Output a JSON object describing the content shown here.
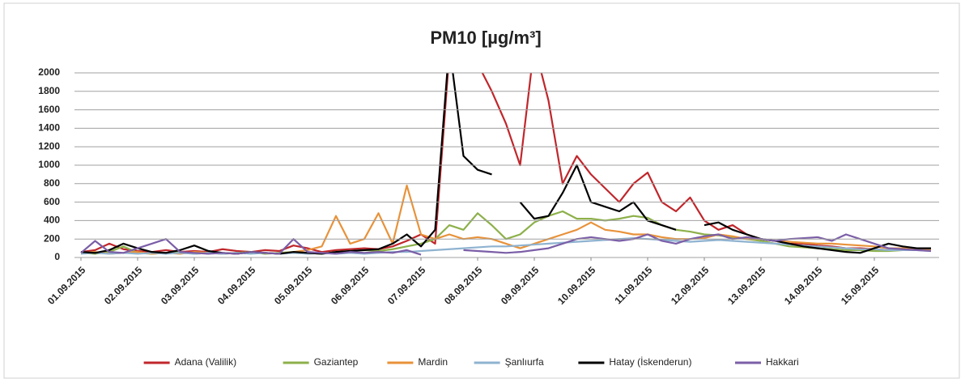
{
  "chart_data": {
    "type": "line",
    "title": "PM10  [µg/m³]",
    "categories": [
      "01.09.2015",
      null,
      null,
      null,
      "02.09.2015",
      null,
      null,
      null,
      "03.09.2015",
      null,
      null,
      null,
      "04.09.2015",
      null,
      null,
      null,
      "05.09.2015",
      null,
      null,
      null,
      "06.09.2015",
      null,
      null,
      null,
      "07.09.2015",
      null,
      null,
      null,
      "08.09.2015",
      null,
      null,
      null,
      "09.09.2015",
      null,
      null,
      null,
      "10.09.2015",
      null,
      null,
      null,
      "11.09.2015",
      null,
      null,
      null,
      "12.09.2015",
      null,
      null,
      null,
      "13.09.2015",
      null,
      null,
      null,
      "14.09.2015",
      null,
      null,
      null,
      "15.09.2015",
      null,
      null,
      null,
      null
    ],
    "series": [
      {
        "name": "Adana (Valilik)",
        "color": "#c0262b",
        "values": [
          60,
          80,
          150,
          90,
          70,
          60,
          80,
          60,
          70,
          60,
          90,
          70,
          60,
          80,
          70,
          130,
          100,
          60,
          80,
          90,
          100,
          90,
          120,
          180,
          250,
          150,
          2200,
          2400,
          2100,
          1800,
          1450,
          1000,
          2300,
          1700,
          800,
          1100,
          900,
          750,
          600,
          800,
          920,
          600,
          500,
          650,
          400,
          300,
          350,
          250,
          200,
          180,
          150,
          150,
          130,
          120,
          100,
          100,
          90,
          80,
          80,
          90,
          80
        ]
      },
      {
        "name": "Gaziantep",
        "color": "#8db04a",
        "values": [
          50,
          40,
          60,
          120,
          50,
          40,
          50,
          60,
          40,
          50,
          40,
          50,
          60,
          40,
          50,
          60,
          50,
          40,
          60,
          70,
          80,
          70,
          90,
          120,
          150,
          200,
          350,
          300,
          480,
          350,
          200,
          250,
          380,
          450,
          500,
          420,
          420,
          400,
          420,
          450,
          430,
          350,
          300,
          280,
          250,
          240,
          220,
          200,
          180,
          150,
          120,
          110,
          100,
          90,
          80,
          80,
          70,
          70,
          80,
          90,
          80
        ]
      },
      {
        "name": "Mardin",
        "color": "#e8923a",
        "values": [
          50,
          60,
          40,
          50,
          60,
          40,
          50,
          40,
          60,
          50,
          50,
          40,
          60,
          50,
          40,
          60,
          80,
          120,
          450,
          150,
          200,
          480,
          150,
          780,
          250,
          200,
          250,
          200,
          220,
          200,
          150,
          100,
          150,
          200,
          250,
          300,
          380,
          300,
          280,
          250,
          250,
          220,
          200,
          200,
          210,
          250,
          230,
          200,
          200,
          180,
          170,
          160,
          150,
          150,
          140,
          130,
          120,
          100,
          100,
          90,
          80
        ]
      },
      {
        "name": "Şanlıurfa",
        "color": "#8fb3d0",
        "values": [
          40,
          50,
          40,
          50,
          40,
          50,
          40,
          50,
          40,
          50,
          40,
          50,
          40,
          50,
          40,
          50,
          40,
          50,
          40,
          50,
          40,
          50,
          60,
          60,
          70,
          80,
          90,
          100,
          110,
          120,
          120,
          130,
          140,
          150,
          160,
          170,
          180,
          190,
          200,
          210,
          200,
          190,
          180,
          170,
          180,
          190,
          180,
          170,
          160,
          150,
          140,
          130,
          120,
          110,
          100,
          90,
          90,
          80,
          80,
          80,
          70
        ]
      },
      {
        "name": "Hatay (İskenderun)",
        "color": "#000000",
        "values": [
          60,
          50,
          80,
          150,
          100,
          60,
          50,
          80,
          130,
          70,
          50,
          40,
          60,
          50,
          40,
          60,
          50,
          40,
          60,
          70,
          80,
          90,
          150,
          250,
          120,
          300,
          2300,
          1100,
          950,
          900,
          null,
          600,
          420,
          450,
          700,
          1000,
          600,
          550,
          500,
          600,
          400,
          350,
          300,
          null,
          350,
          380,
          300,
          250,
          200,
          180,
          150,
          120,
          100,
          80,
          60,
          50,
          100,
          150,
          120,
          100,
          100
        ]
      },
      {
        "name": "Hakkari",
        "color": "#7b5ea7",
        "values": [
          50,
          180,
          60,
          50,
          100,
          150,
          200,
          60,
          50,
          40,
          50,
          40,
          60,
          50,
          40,
          200,
          60,
          50,
          40,
          60,
          50,
          60,
          50,
          80,
          30,
          null,
          null,
          80,
          70,
          60,
          50,
          60,
          80,
          100,
          150,
          200,
          220,
          200,
          180,
          200,
          250,
          180,
          150,
          200,
          230,
          250,
          200,
          220,
          200,
          180,
          200,
          210,
          220,
          180,
          250,
          200,
          150,
          100,
          90,
          80,
          70
        ]
      }
    ],
    "ylim": [
      0,
      2000
    ],
    "yticks": [
      0,
      200,
      400,
      600,
      800,
      1000,
      1200,
      1400,
      1600,
      1800,
      2000
    ],
    "grid": true,
    "legend": "bottom"
  }
}
